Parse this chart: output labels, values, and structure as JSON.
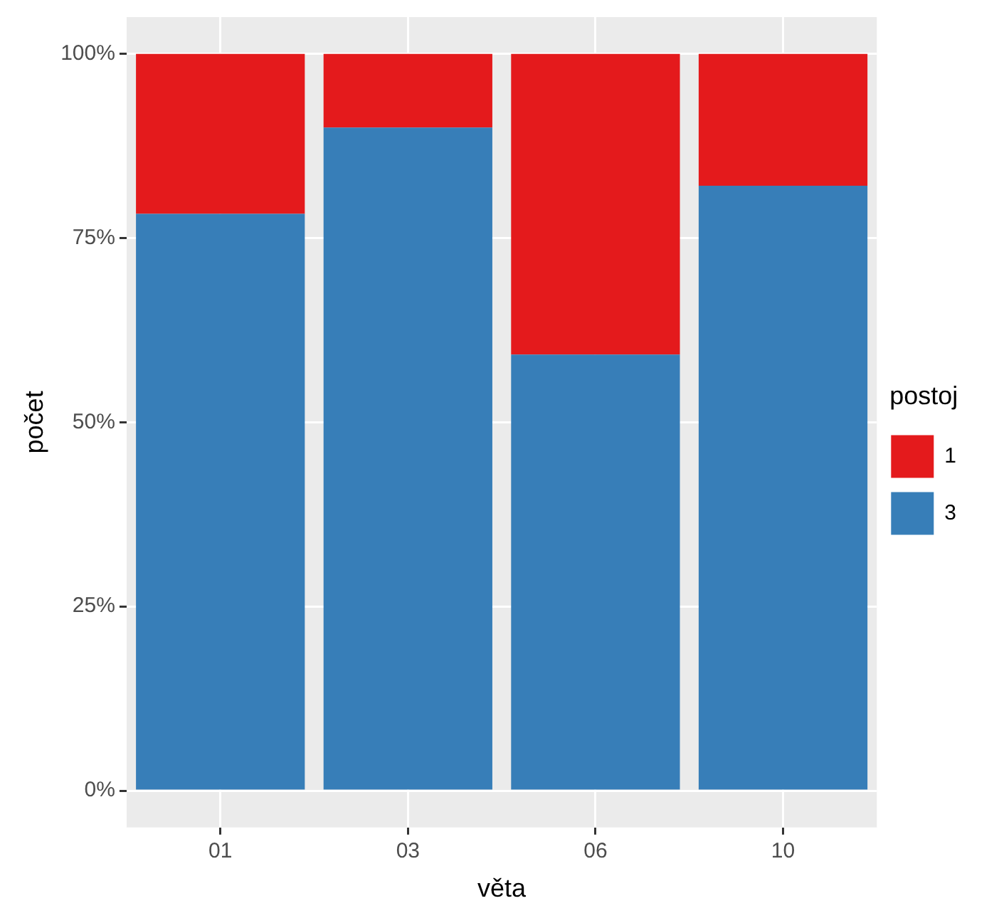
{
  "chart_data": {
    "type": "bar",
    "xlabel": "věta",
    "ylabel": "počet",
    "legend_title": "postoj",
    "stacked": true,
    "categories": [
      "01",
      "03",
      "06",
      "10"
    ],
    "series": [
      {
        "name": "3",
        "color": "#377eb8",
        "values": [
          78.3,
          90.0,
          59.2,
          82.1
        ]
      },
      {
        "name": "1",
        "color": "#e41a1c",
        "values": [
          21.7,
          10.0,
          40.8,
          17.9
        ]
      }
    ],
    "ylim": [
      -5,
      105
    ],
    "yticks": [
      {
        "value": 0,
        "label": "0%"
      },
      {
        "value": 25,
        "label": "25%"
      },
      {
        "value": 50,
        "label": "50%"
      },
      {
        "value": 75,
        "label": "75%"
      },
      {
        "value": 100,
        "label": "100%"
      }
    ],
    "grid": true,
    "legend": "right"
  }
}
